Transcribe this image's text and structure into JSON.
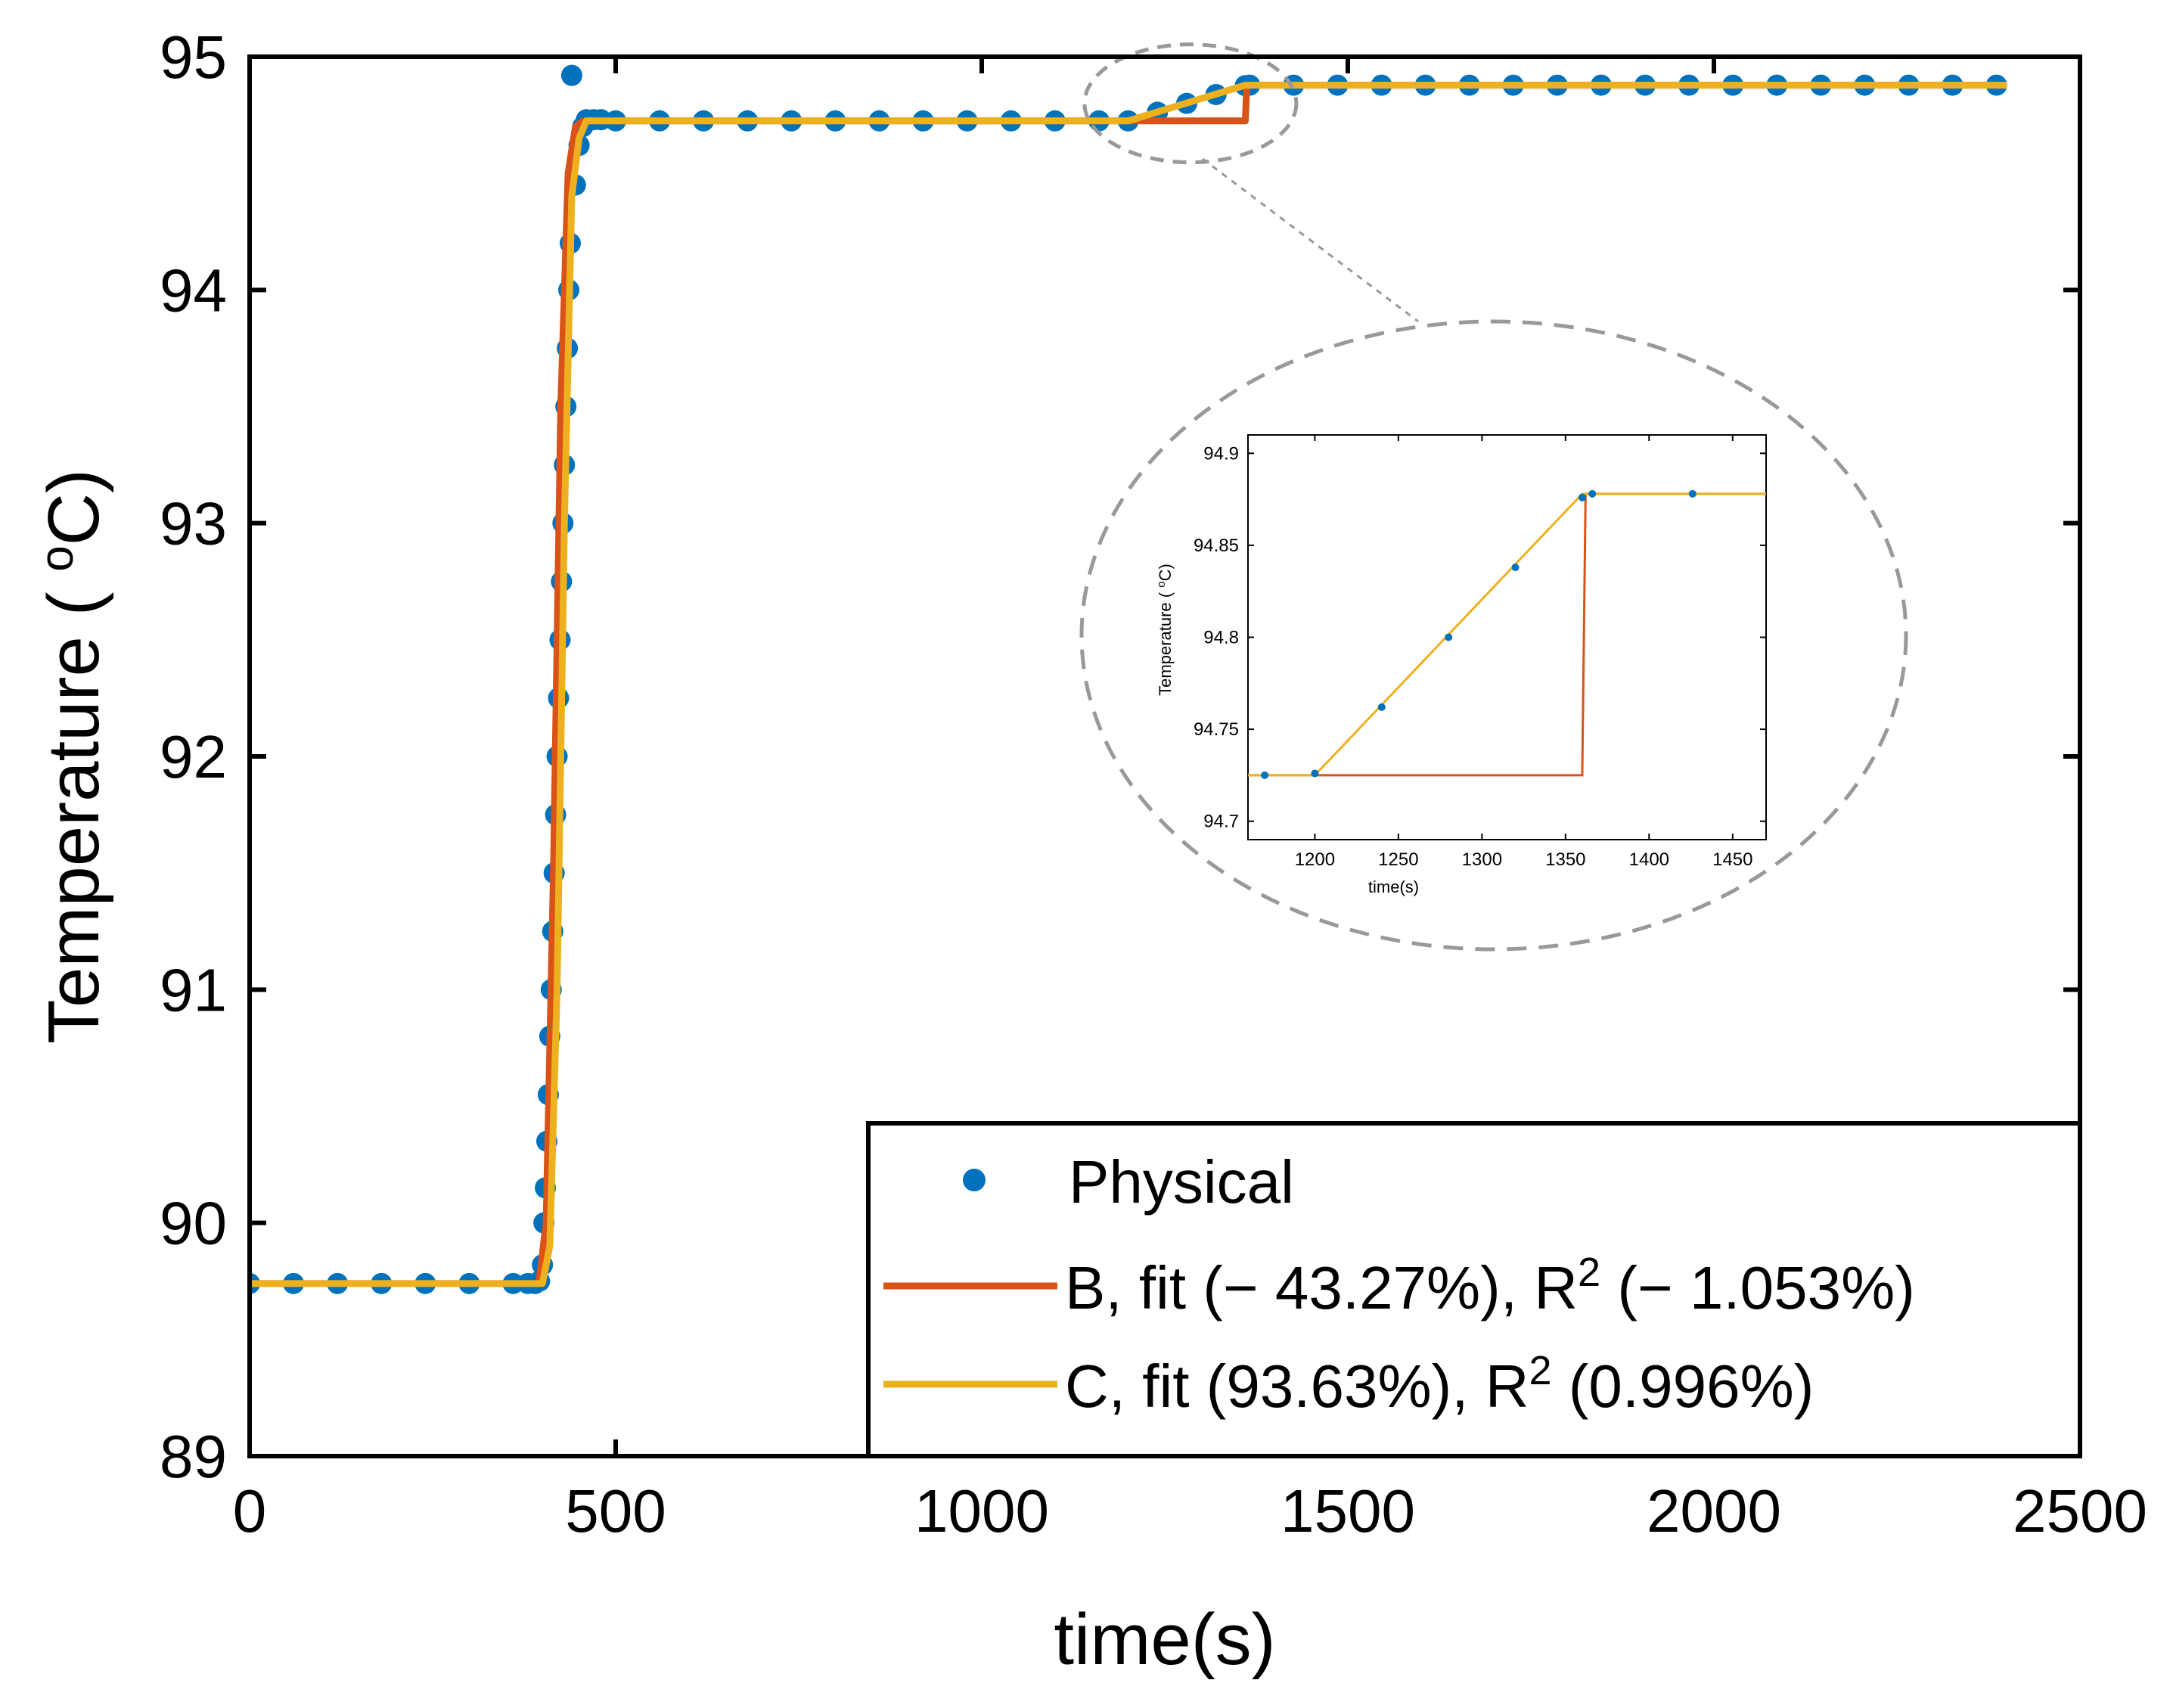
{
  "chart_data": [
    {
      "id": "main",
      "type": "line",
      "xlabel": "time(s)",
      "ylabel_prefix": "Temperature ( ",
      "ylabel_sup": "o",
      "ylabel_suffix": "C)",
      "xlim": [
        0,
        2500
      ],
      "ylim": [
        89,
        95
      ],
      "xticks": [
        0,
        500,
        1000,
        1500,
        2000,
        2500
      ],
      "yticks": [
        89,
        90,
        91,
        92,
        93,
        94,
        95
      ],
      "xtick_labels": [
        "0",
        "500",
        "1000",
        "1500",
        "2000",
        "2500"
      ],
      "ytick_labels": [
        "89",
        "90",
        "91",
        "92",
        "93",
        "94",
        "95"
      ],
      "series": [
        {
          "name": "Physical",
          "style": "markers",
          "color": "#0072BD",
          "x": [
            0,
            60,
            120,
            180,
            240,
            300,
            360,
            380,
            390,
            396,
            400,
            402,
            404,
            406,
            408,
            410,
            412,
            414,
            416,
            418,
            420,
            422,
            424,
            426,
            428,
            430,
            432,
            434,
            436,
            438,
            440,
            445,
            450,
            455,
            460,
            470,
            480,
            500,
            560,
            620,
            680,
            740,
            800,
            860,
            920,
            980,
            1040,
            1100,
            1160,
            1200,
            1240,
            1280,
            1320,
            1360,
            1366,
            1426,
            1486,
            1546,
            1606,
            1666,
            1726,
            1786,
            1846,
            1906,
            1966,
            2026,
            2086,
            2146,
            2206,
            2266,
            2326,
            2386
          ],
          "y": [
            89.74,
            89.74,
            89.74,
            89.74,
            89.74,
            89.74,
            89.74,
            89.74,
            89.74,
            89.75,
            89.82,
            90.0,
            90.15,
            90.35,
            90.55,
            90.8,
            91.0,
            91.25,
            91.5,
            91.75,
            92.0,
            92.25,
            92.5,
            92.75,
            93.0,
            93.25,
            93.5,
            93.75,
            94.0,
            94.2,
            94.92,
            94.45,
            94.62,
            94.7,
            94.73,
            94.73,
            94.73,
            94.725,
            94.725,
            94.725,
            94.725,
            94.725,
            94.725,
            94.725,
            94.725,
            94.725,
            94.725,
            94.725,
            94.725,
            94.725,
            94.762,
            94.8,
            94.838,
            94.876,
            94.878,
            94.878,
            94.878,
            94.878,
            94.878,
            94.878,
            94.878,
            94.878,
            94.878,
            94.878,
            94.878,
            94.878,
            94.878,
            94.878,
            94.878,
            94.878,
            94.878,
            94.878
          ]
        },
        {
          "name": "B, fit (− 43.27%), R",
          "legend_sup": "2",
          "legend_tail": " (− 1.053%)",
          "style": "line",
          "color": "#D95319",
          "x": [
            0,
            395,
            405,
            415,
            425,
            435,
            445,
            455,
            1360,
            1362,
            2400
          ],
          "y": [
            89.74,
            89.74,
            90.0,
            91.5,
            93.5,
            94.5,
            94.7,
            94.725,
            94.725,
            94.878,
            94.878
          ]
        },
        {
          "name": "C, fit (93.63%), R",
          "legend_sup": "2",
          "legend_tail": " (0.996%)",
          "style": "line",
          "color": "#EDB120",
          "x": [
            0,
            400,
            410,
            420,
            430,
            440,
            450,
            460,
            1200,
            1360,
            2400
          ],
          "y": [
            89.74,
            89.74,
            89.9,
            91.0,
            93.0,
            94.4,
            94.65,
            94.725,
            94.725,
            94.878,
            94.878
          ]
        }
      ],
      "legend_location": "bottom-right"
    },
    {
      "id": "inset",
      "type": "line",
      "xlabel": "time(s)",
      "ylabel_prefix": "Temperature ( ",
      "ylabel_sup": "o",
      "ylabel_suffix": "C)",
      "xlim": [
        1160,
        1470
      ],
      "ylim": [
        94.69,
        94.91
      ],
      "xticks": [
        1200,
        1250,
        1300,
        1350,
        1400,
        1450
      ],
      "yticks": [
        94.7,
        94.75,
        94.8,
        94.85,
        94.9
      ],
      "xtick_labels": [
        "1200",
        "1250",
        "1300",
        "1350",
        "1400",
        "1450"
      ],
      "ytick_labels": [
        "94.7",
        "94.75",
        "94.8",
        "94.85",
        "94.9"
      ],
      "series": [
        {
          "name": "Physical",
          "style": "markers",
          "color": "#0072BD",
          "x": [
            1170,
            1200,
            1240,
            1280,
            1320,
            1360,
            1366,
            1426
          ],
          "y": [
            94.725,
            94.726,
            94.762,
            94.8,
            94.838,
            94.876,
            94.878,
            94.878
          ]
        },
        {
          "name": "B",
          "style": "line",
          "color": "#D95319",
          "x": [
            1160,
            1360,
            1362,
            1470
          ],
          "y": [
            94.725,
            94.725,
            94.878,
            94.878
          ]
        },
        {
          "name": "C",
          "style": "line",
          "color": "#EDB120",
          "x": [
            1160,
            1200,
            1360,
            1470
          ],
          "y": [
            94.725,
            94.725,
            94.878,
            94.878
          ]
        }
      ]
    }
  ]
}
